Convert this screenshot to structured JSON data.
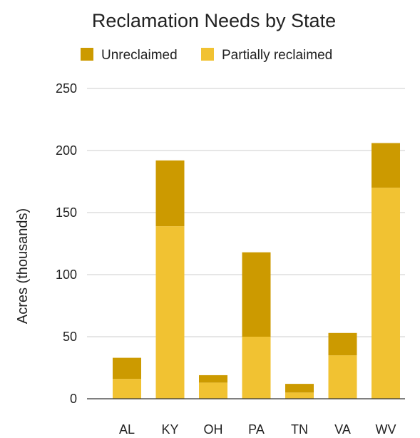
{
  "chart_data": {
    "type": "bar",
    "stacked": true,
    "title": "Reclamation Needs by State",
    "xlabel": "",
    "ylabel": "Acres (thousands)",
    "categories": [
      "AL",
      "KY",
      "OH",
      "PA",
      "TN",
      "VA",
      "WV"
    ],
    "series": [
      {
        "name": "Partially reclaimed",
        "color": "#f1c232",
        "values": [
          16,
          139,
          13,
          50,
          5,
          35,
          170
        ]
      },
      {
        "name": "Unreclaimed",
        "color": "#cc9a00",
        "values": [
          17,
          53,
          6,
          68,
          7,
          18,
          36
        ]
      }
    ],
    "legend": {
      "placement": "top",
      "entries": [
        {
          "label": "Unreclaimed",
          "color": "#cc9a00"
        },
        {
          "label": "Partially reclaimed",
          "color": "#f1c232"
        }
      ]
    },
    "y_ticks": [
      0,
      50,
      100,
      150,
      200,
      250
    ],
    "ylim": [
      0,
      250
    ],
    "grid": true
  }
}
